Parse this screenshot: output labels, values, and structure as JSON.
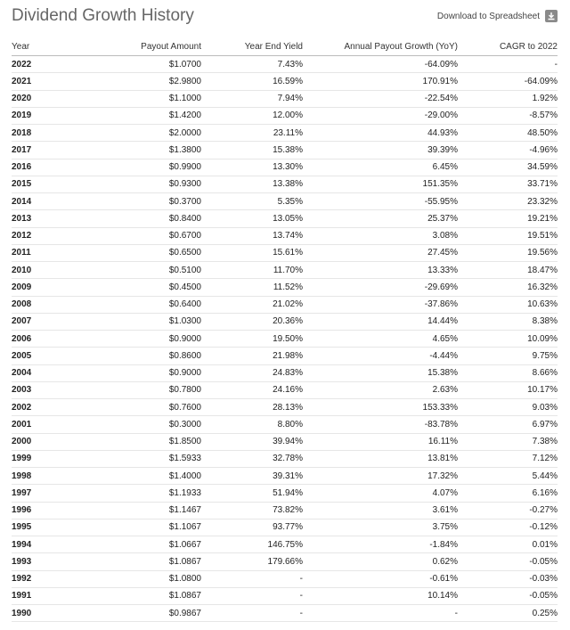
{
  "header": {
    "title": "Dividend Growth History",
    "download": "Download to Spreadsheet"
  },
  "table": {
    "columns": [
      "Year",
      "Payout Amount",
      "Year End Yield",
      "Annual Payout Growth (YoY)",
      "CAGR to 2022"
    ],
    "rows": [
      [
        "2022",
        "$1.0700",
        "7.43%",
        "-64.09%",
        "-"
      ],
      [
        "2021",
        "$2.9800",
        "16.59%",
        "170.91%",
        "-64.09%"
      ],
      [
        "2020",
        "$1.1000",
        "7.94%",
        "-22.54%",
        "1.92%"
      ],
      [
        "2019",
        "$1.4200",
        "12.00%",
        "-29.00%",
        "-8.57%"
      ],
      [
        "2018",
        "$2.0000",
        "23.11%",
        "44.93%",
        "48.50%"
      ],
      [
        "2017",
        "$1.3800",
        "15.38%",
        "39.39%",
        "-4.96%"
      ],
      [
        "2016",
        "$0.9900",
        "13.30%",
        "6.45%",
        "34.59%"
      ],
      [
        "2015",
        "$0.9300",
        "13.38%",
        "151.35%",
        "33.71%"
      ],
      [
        "2014",
        "$0.3700",
        "5.35%",
        "-55.95%",
        "23.32%"
      ],
      [
        "2013",
        "$0.8400",
        "13.05%",
        "25.37%",
        "19.21%"
      ],
      [
        "2012",
        "$0.6700",
        "13.74%",
        "3.08%",
        "19.51%"
      ],
      [
        "2011",
        "$0.6500",
        "15.61%",
        "27.45%",
        "19.56%"
      ],
      [
        "2010",
        "$0.5100",
        "11.70%",
        "13.33%",
        "18.47%"
      ],
      [
        "2009",
        "$0.4500",
        "11.52%",
        "-29.69%",
        "16.32%"
      ],
      [
        "2008",
        "$0.6400",
        "21.02%",
        "-37.86%",
        "10.63%"
      ],
      [
        "2007",
        "$1.0300",
        "20.36%",
        "14.44%",
        "8.38%"
      ],
      [
        "2006",
        "$0.9000",
        "19.50%",
        "4.65%",
        "10.09%"
      ],
      [
        "2005",
        "$0.8600",
        "21.98%",
        "-4.44%",
        "9.75%"
      ],
      [
        "2004",
        "$0.9000",
        "24.83%",
        "15.38%",
        "8.66%"
      ],
      [
        "2003",
        "$0.7800",
        "24.16%",
        "2.63%",
        "10.17%"
      ],
      [
        "2002",
        "$0.7600",
        "28.13%",
        "153.33%",
        "9.03%"
      ],
      [
        "2001",
        "$0.3000",
        "8.80%",
        "-83.78%",
        "6.97%"
      ],
      [
        "2000",
        "$1.8500",
        "39.94%",
        "16.11%",
        "7.38%"
      ],
      [
        "1999",
        "$1.5933",
        "32.78%",
        "13.81%",
        "7.12%"
      ],
      [
        "1998",
        "$1.4000",
        "39.31%",
        "17.32%",
        "5.44%"
      ],
      [
        "1997",
        "$1.1933",
        "51.94%",
        "4.07%",
        "6.16%"
      ],
      [
        "1996",
        "$1.1467",
        "73.82%",
        "3.61%",
        "-0.27%"
      ],
      [
        "1995",
        "$1.1067",
        "93.77%",
        "3.75%",
        "-0.12%"
      ],
      [
        "1994",
        "$1.0667",
        "146.75%",
        "-1.84%",
        "0.01%"
      ],
      [
        "1993",
        "$1.0867",
        "179.66%",
        "0.62%",
        "-0.05%"
      ],
      [
        "1992",
        "$1.0800",
        "-",
        "-0.61%",
        "-0.03%"
      ],
      [
        "1991",
        "$1.0867",
        "-",
        "10.14%",
        "-0.05%"
      ],
      [
        "1990",
        "$0.9867",
        "-",
        "-",
        "0.25%"
      ]
    ]
  }
}
